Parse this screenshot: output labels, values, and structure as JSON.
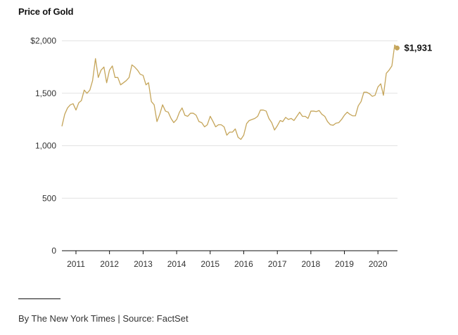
{
  "chart_data": {
    "type": "line",
    "title": "Price of Gold",
    "xlabel": "",
    "ylabel": "",
    "x_ticks": [
      "2011",
      "2012",
      "2013",
      "2014",
      "2015",
      "2016",
      "2017",
      "2018",
      "2019",
      "2020"
    ],
    "y_ticks": [
      "$2,000",
      "1,500",
      "1,000",
      "500",
      "0"
    ],
    "y_tick_values": [
      2000,
      1500,
      1000,
      500,
      0
    ],
    "ylim": [
      0,
      2000
    ],
    "xlim": [
      "2010-08-01",
      "2020-08-01"
    ],
    "grid": "horizontal",
    "line_color": "#c5a55a",
    "end_label": "$1,931",
    "series": [
      {
        "values": [
          [
            "2010-08-01",
            1185
          ],
          [
            "2010-09-01",
            1300
          ],
          [
            "2010-10-01",
            1360
          ],
          [
            "2010-11-01",
            1390
          ],
          [
            "2010-12-01",
            1400
          ],
          [
            "2011-01-01",
            1340
          ],
          [
            "2011-02-01",
            1410
          ],
          [
            "2011-03-01",
            1430
          ],
          [
            "2011-04-01",
            1530
          ],
          [
            "2011-05-01",
            1500
          ],
          [
            "2011-06-01",
            1530
          ],
          [
            "2011-07-01",
            1620
          ],
          [
            "2011-08-01",
            1830
          ],
          [
            "2011-09-01",
            1650
          ],
          [
            "2011-10-01",
            1720
          ],
          [
            "2011-11-01",
            1750
          ],
          [
            "2011-12-01",
            1600
          ],
          [
            "2012-01-01",
            1720
          ],
          [
            "2012-02-01",
            1760
          ],
          [
            "2012-03-01",
            1650
          ],
          [
            "2012-04-01",
            1650
          ],
          [
            "2012-05-01",
            1580
          ],
          [
            "2012-06-01",
            1600
          ],
          [
            "2012-07-01",
            1620
          ],
          [
            "2012-08-01",
            1650
          ],
          [
            "2012-09-01",
            1770
          ],
          [
            "2012-10-01",
            1750
          ],
          [
            "2012-11-01",
            1720
          ],
          [
            "2012-12-01",
            1680
          ],
          [
            "2013-01-01",
            1670
          ],
          [
            "2013-02-01",
            1580
          ],
          [
            "2013-03-01",
            1600
          ],
          [
            "2013-04-01",
            1420
          ],
          [
            "2013-05-01",
            1390
          ],
          [
            "2013-06-01",
            1230
          ],
          [
            "2013-07-01",
            1300
          ],
          [
            "2013-08-01",
            1390
          ],
          [
            "2013-09-01",
            1330
          ],
          [
            "2013-10-01",
            1320
          ],
          [
            "2013-11-01",
            1260
          ],
          [
            "2013-12-01",
            1220
          ],
          [
            "2014-01-01",
            1250
          ],
          [
            "2014-02-01",
            1320
          ],
          [
            "2014-03-01",
            1360
          ],
          [
            "2014-04-01",
            1290
          ],
          [
            "2014-05-01",
            1280
          ],
          [
            "2014-06-01",
            1310
          ],
          [
            "2014-07-01",
            1310
          ],
          [
            "2014-08-01",
            1290
          ],
          [
            "2014-09-01",
            1230
          ],
          [
            "2014-10-01",
            1220
          ],
          [
            "2014-11-01",
            1180
          ],
          [
            "2014-12-01",
            1200
          ],
          [
            "2015-01-01",
            1280
          ],
          [
            "2015-02-01",
            1230
          ],
          [
            "2015-03-01",
            1180
          ],
          [
            "2015-04-01",
            1200
          ],
          [
            "2015-05-01",
            1200
          ],
          [
            "2015-06-01",
            1180
          ],
          [
            "2015-07-01",
            1100
          ],
          [
            "2015-08-01",
            1130
          ],
          [
            "2015-09-01",
            1130
          ],
          [
            "2015-10-01",
            1160
          ],
          [
            "2015-11-01",
            1080
          ],
          [
            "2015-12-01",
            1060
          ],
          [
            "2016-01-01",
            1100
          ],
          [
            "2016-02-01",
            1210
          ],
          [
            "2016-03-01",
            1240
          ],
          [
            "2016-04-01",
            1250
          ],
          [
            "2016-05-01",
            1260
          ],
          [
            "2016-06-01",
            1280
          ],
          [
            "2016-07-01",
            1340
          ],
          [
            "2016-08-01",
            1340
          ],
          [
            "2016-09-01",
            1330
          ],
          [
            "2016-10-01",
            1260
          ],
          [
            "2016-11-01",
            1220
          ],
          [
            "2016-12-01",
            1150
          ],
          [
            "2017-01-01",
            1190
          ],
          [
            "2017-02-01",
            1240
          ],
          [
            "2017-03-01",
            1230
          ],
          [
            "2017-04-01",
            1270
          ],
          [
            "2017-05-01",
            1250
          ],
          [
            "2017-06-01",
            1260
          ],
          [
            "2017-07-01",
            1240
          ],
          [
            "2017-08-01",
            1280
          ],
          [
            "2017-09-01",
            1320
          ],
          [
            "2017-10-01",
            1280
          ],
          [
            "2017-11-01",
            1280
          ],
          [
            "2017-12-01",
            1260
          ],
          [
            "2018-01-01",
            1330
          ],
          [
            "2018-02-01",
            1330
          ],
          [
            "2018-03-01",
            1325
          ],
          [
            "2018-04-01",
            1335
          ],
          [
            "2018-05-01",
            1300
          ],
          [
            "2018-06-01",
            1280
          ],
          [
            "2018-07-01",
            1230
          ],
          [
            "2018-08-01",
            1200
          ],
          [
            "2018-09-01",
            1195
          ],
          [
            "2018-10-01",
            1215
          ],
          [
            "2018-11-01",
            1220
          ],
          [
            "2018-12-01",
            1250
          ],
          [
            "2019-01-01",
            1290
          ],
          [
            "2019-02-01",
            1320
          ],
          [
            "2019-03-01",
            1300
          ],
          [
            "2019-04-01",
            1285
          ],
          [
            "2019-05-01",
            1285
          ],
          [
            "2019-06-01",
            1380
          ],
          [
            "2019-07-01",
            1420
          ],
          [
            "2019-08-01",
            1510
          ],
          [
            "2019-09-01",
            1510
          ],
          [
            "2019-10-01",
            1495
          ],
          [
            "2019-11-01",
            1470
          ],
          [
            "2019-12-01",
            1480
          ],
          [
            "2020-01-01",
            1560
          ],
          [
            "2020-02-01",
            1590
          ],
          [
            "2020-03-01",
            1480
          ],
          [
            "2020-04-01",
            1690
          ],
          [
            "2020-05-01",
            1720
          ],
          [
            "2020-06-01",
            1760
          ],
          [
            "2020-07-01",
            1960
          ],
          [
            "2020-07-28",
            1931
          ]
        ]
      }
    ]
  },
  "footer": {
    "credit": "By The New York Times | Source: FactSet"
  }
}
